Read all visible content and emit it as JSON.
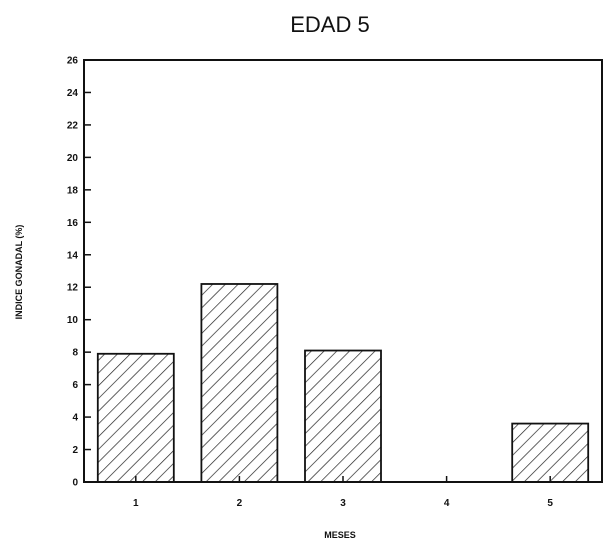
{
  "chart_data": {
    "type": "bar",
    "title": "EDAD 5",
    "xlabel": "MESES",
    "ylabel": "INDICE GONADAL (%)",
    "categories": [
      "1",
      "2",
      "3",
      "4",
      "5"
    ],
    "values": [
      7.9,
      12.2,
      8.1,
      0,
      3.6
    ],
    "ylim": [
      0,
      26
    ],
    "yticks": [
      "0",
      "2",
      "4",
      "6",
      "8",
      "10",
      "12",
      "14",
      "16",
      "18",
      "20",
      "22",
      "24",
      "26"
    ],
    "fill_pattern": "diagonal-hatch",
    "grid": false,
    "colors": {
      "axis": "#111111",
      "bar_stroke": "#111111",
      "hatch": "#222222",
      "background": "#ffffff"
    }
  }
}
